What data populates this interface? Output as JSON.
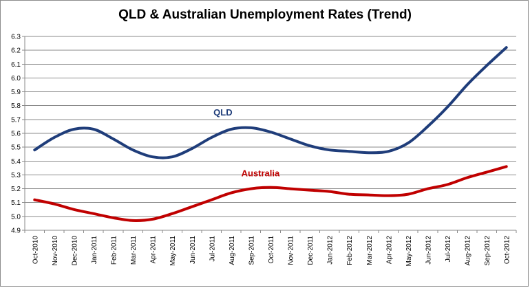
{
  "chart_data": {
    "type": "line",
    "title": "QLD & Australian Unemployment Rates (Trend)",
    "xlabel": "",
    "ylabel": "",
    "categories": [
      "Oct-2010",
      "Nov-2010",
      "Dec-2010",
      "Jan-2011",
      "Feb-2011",
      "Mar-2011",
      "Apr-2011",
      "May-2011",
      "Jun-2011",
      "Jul-2011",
      "Aug-2011",
      "Sep-2011",
      "Oct-2011",
      "Nov-2011",
      "Dec-2011",
      "Jan-2012",
      "Feb-2012",
      "Mar-2012",
      "Apr-2012",
      "May-2012",
      "Jun-2012",
      "Jul-2012",
      "Aug-2012",
      "Sep-2012",
      "Oct-2012"
    ],
    "ylim": [
      4.9,
      6.3
    ],
    "yticks": [
      "4.9",
      "5.0",
      "5.1",
      "5.2",
      "5.3",
      "5.4",
      "5.5",
      "5.6",
      "5.7",
      "5.8",
      "5.9",
      "6.0",
      "6.1",
      "6.2",
      "6.3"
    ],
    "grid": true,
    "legend": "none",
    "series": [
      {
        "name": "QLD",
        "color": "#1f3d7a",
        "values": [
          5.48,
          5.57,
          5.63,
          5.63,
          5.56,
          5.48,
          5.43,
          5.43,
          5.49,
          5.57,
          5.63,
          5.64,
          5.61,
          5.56,
          5.51,
          5.48,
          5.47,
          5.46,
          5.47,
          5.53,
          5.65,
          5.79,
          5.95,
          6.09,
          6.22
        ]
      },
      {
        "name": "Australia",
        "color": "#c00000",
        "values": [
          5.12,
          5.09,
          5.05,
          5.02,
          4.99,
          4.97,
          4.98,
          5.02,
          5.07,
          5.12,
          5.17,
          5.2,
          5.21,
          5.2,
          5.19,
          5.18,
          5.16,
          5.155,
          5.15,
          5.16,
          5.2,
          5.23,
          5.28,
          5.32,
          5.36
        ]
      }
    ]
  }
}
